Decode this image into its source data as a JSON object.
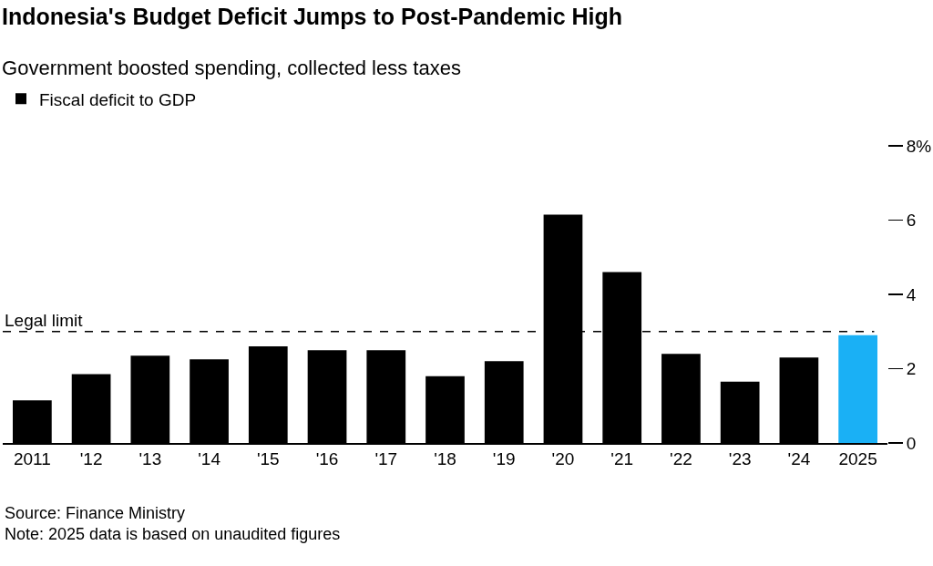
{
  "chart_data": {
    "type": "bar",
    "title": "Indonesia's Budget Deficit Jumps to Post-Pandemic High",
    "subtitle": "Government boosted spending, collected less taxes",
    "categories": [
      "2011",
      "'12",
      "'13",
      "'14",
      "'15",
      "'16",
      "'17",
      "'18",
      "'19",
      "'20",
      "'21",
      "'22",
      "'23",
      "'24",
      "2025"
    ],
    "series": [
      {
        "name": "Fiscal deficit to GDP",
        "color": "#000000",
        "values": [
          1.15,
          1.85,
          2.35,
          2.25,
          2.6,
          2.5,
          2.5,
          1.8,
          2.2,
          6.15,
          4.6,
          2.4,
          1.65,
          2.3,
          2.9
        ],
        "colors": [
          "#000000",
          "#000000",
          "#000000",
          "#000000",
          "#000000",
          "#000000",
          "#000000",
          "#000000",
          "#000000",
          "#000000",
          "#000000",
          "#000000",
          "#000000",
          "#000000",
          "#1ab0f5"
        ]
      }
    ],
    "ylim": [
      0,
      8
    ],
    "yticks": [
      0,
      2,
      4,
      6,
      {
        "value": 8,
        "label": "8%"
      }
    ],
    "grid": false,
    "legend": "top left",
    "ref_lines": [
      {
        "axis": "y",
        "value": 3,
        "label": "Legal limit",
        "line_style": "dashed",
        "color": "#000000"
      }
    ],
    "annotations": [
      "Source: Finance Ministry",
      "Note: 2025 data is based on unaudited figures"
    ]
  }
}
